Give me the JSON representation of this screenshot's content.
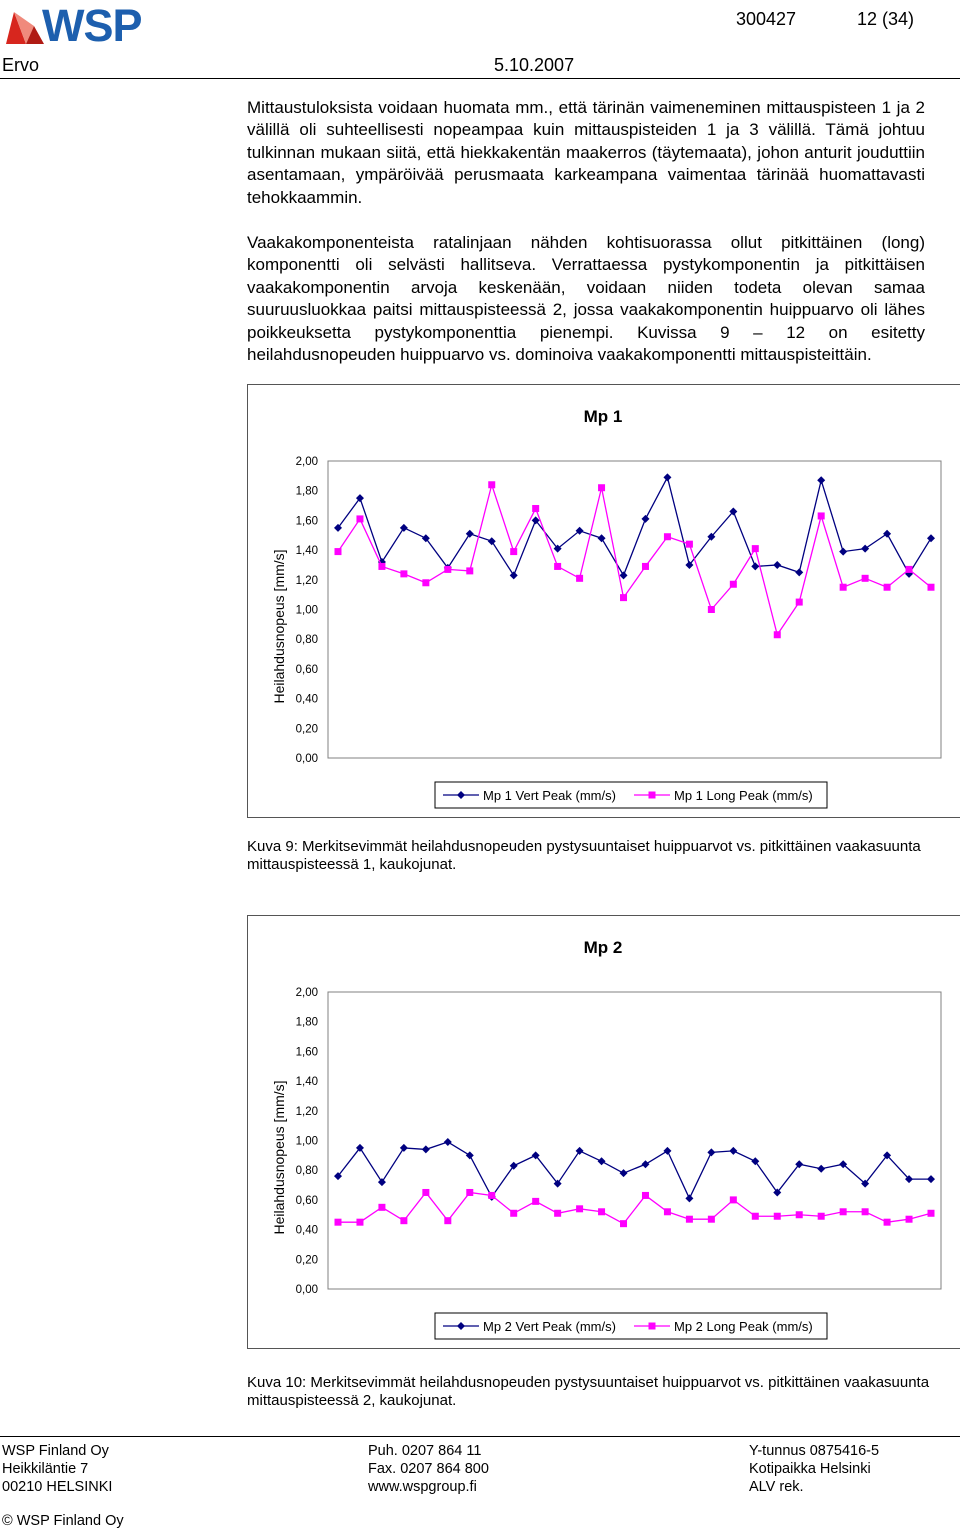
{
  "header": {
    "logo_text": "WSP",
    "doc_number": "300427",
    "page": "12 (34)",
    "author": "Ervo",
    "date": "5.10.2007"
  },
  "body": {
    "para1": "Mittaustuloksista voidaan huomata mm., että tärinän vaimeneminen mittauspisteen 1 ja 2 välillä oli suhteellisesti nopeampaa kuin mittauspisteiden 1 ja 3 välillä. Tämä johtuu tulkinnan mukaan siitä, että hiekkakentän maakerros (täytemaata), johon anturit jouduttiin asentamaan, ympäröivää perusmaata karkeampana vaimentaa tärinää huomattavasti tehokkaammin.",
    "para2": "Vaakakomponenteista ratalinjaan nähden kohtisuorassa ollut pitkittäinen (long) komponentti oli selvästi hallitseva. Verrattaessa pystykomponentin ja pitkittäisen vaakakomponentin arvoja keskenään, voidaan niiden todeta olevan samaa suuruusluokkaa paitsi mittauspisteessä 2, jossa vaakakomponentin huippuarvo oli lähes poikkeuksetta pystykomponenttia pienempi. Kuvissa 9 – 12 on esitetty heilahdusnopeuden huippuarvo vs. dominoiva vaakakomponentti mittauspisteittäin."
  },
  "figures": {
    "caption1": "Kuva 9: Merkitsevimmät heilahdusnopeuden pystysuuntaiset huippuarvot vs. pitkittäinen vaakasuunta mittauspisteessä 1, kaukojunat.",
    "caption2": "Kuva 10: Merkitsevimmät heilahdusnopeuden pystysuuntaiset huippuarvot vs. pitkittäinen vaakasuunta mittauspisteessä 2, kaukojunat."
  },
  "chart_data": [
    {
      "type": "line",
      "title": "Mp 1",
      "ylabel": "Heilahdusnopeus [mm/s]",
      "xlabel": "",
      "ylim": [
        0,
        2
      ],
      "yticks": [
        "2,00",
        "1,80",
        "1,60",
        "1,40",
        "1,20",
        "1,00",
        "0,80",
        "0,60",
        "0,40",
        "0,20",
        "0,00"
      ],
      "legend_position": "bottom",
      "series": [
        {
          "name": "Mp 1 Vert Peak (mm/s)",
          "color": "#000080",
          "marker": "diamond",
          "values": [
            1.55,
            1.75,
            1.32,
            1.55,
            1.48,
            1.28,
            1.51,
            1.46,
            1.23,
            1.6,
            1.41,
            1.53,
            1.48,
            1.23,
            1.61,
            1.89,
            1.3,
            1.49,
            1.66,
            1.29,
            1.3,
            1.25,
            1.87,
            1.39,
            1.41,
            1.51,
            1.24,
            1.48
          ]
        },
        {
          "name": "Mp 1 Long Peak (mm/s)",
          "color": "#ff00ff",
          "marker": "square",
          "values": [
            1.39,
            1.61,
            1.29,
            1.24,
            1.18,
            1.27,
            1.26,
            1.84,
            1.39,
            1.68,
            1.29,
            1.21,
            1.82,
            1.08,
            1.29,
            1.49,
            1.44,
            1.0,
            1.17,
            1.41,
            0.83,
            1.05,
            1.63,
            1.15,
            1.21,
            1.15,
            1.27,
            1.15
          ]
        }
      ]
    },
    {
      "type": "line",
      "title": "Mp 2",
      "ylabel": "Heilahdusnopeus [mm/s]",
      "xlabel": "",
      "ylim": [
        0,
        2
      ],
      "yticks": [
        "2,00",
        "1,80",
        "1,60",
        "1,40",
        "1,20",
        "1,00",
        "0,80",
        "0,60",
        "0,40",
        "0,20",
        "0,00"
      ],
      "legend_position": "bottom",
      "series": [
        {
          "name": "Mp 2 Vert Peak (mm/s)",
          "color": "#000080",
          "marker": "diamond",
          "values": [
            0.76,
            0.95,
            0.72,
            0.95,
            0.94,
            0.99,
            0.9,
            0.62,
            0.83,
            0.9,
            0.71,
            0.93,
            0.86,
            0.78,
            0.84,
            0.93,
            0.61,
            0.92,
            0.93,
            0.86,
            0.65,
            0.84,
            0.81,
            0.84,
            0.71,
            0.9,
            0.74,
            0.74
          ]
        },
        {
          "name": "Mp 2 Long Peak (mm/s)",
          "color": "#ff00ff",
          "marker": "square",
          "values": [
            0.45,
            0.45,
            0.55,
            0.46,
            0.65,
            0.46,
            0.65,
            0.63,
            0.51,
            0.59,
            0.51,
            0.54,
            0.52,
            0.44,
            0.63,
            0.52,
            0.47,
            0.47,
            0.6,
            0.49,
            0.49,
            0.5,
            0.49,
            0.52,
            0.52,
            0.45,
            0.47,
            0.51
          ]
        }
      ]
    }
  ],
  "footer": {
    "company": "WSP Finland Oy",
    "street": "Heikkiläntie 7",
    "postcode": "00210 HELSINKI",
    "phone": "Puh. 0207 864 11",
    "fax": "Fax. 0207 864 800",
    "web": "www.wspgroup.fi",
    "ytunnus": "Y-tunnus 0875416-5",
    "kotipaikka": "Kotipaikka Helsinki",
    "alv": "ALV rek.",
    "copyright": "© WSP Finland Oy"
  }
}
